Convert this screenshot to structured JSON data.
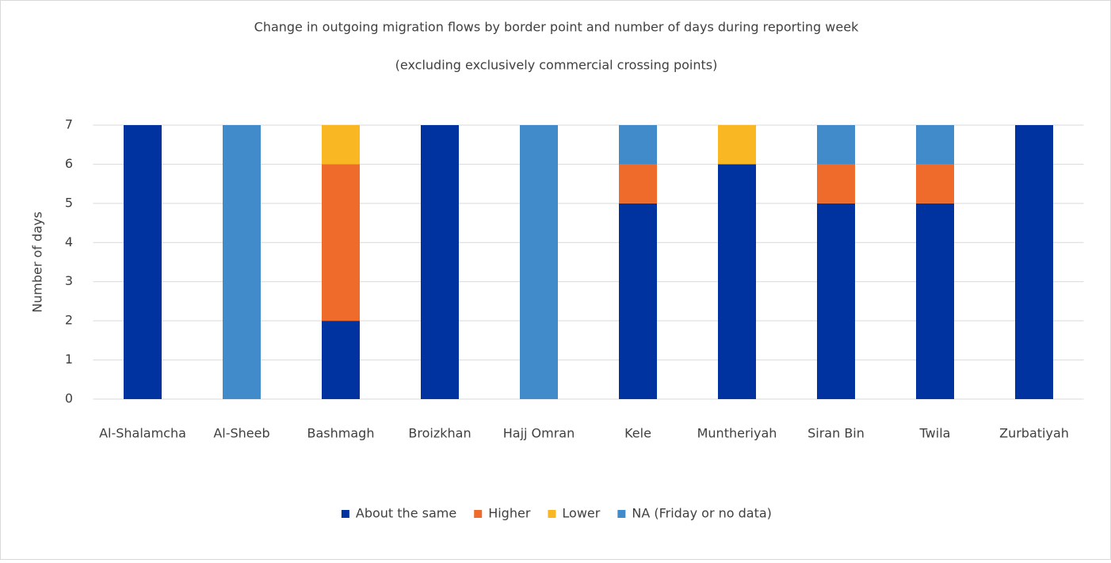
{
  "chart_data": {
    "type": "stacked_bar",
    "title": "Change in outgoing migration flows by border point and number of days during reporting week",
    "subtitle": "(excluding exclusively commercial crossing points)",
    "ylabel": "Number of days",
    "categories": [
      "Al-Shalamcha",
      "Al-Sheeb",
      "Bashmagh",
      "Broizkhan",
      "Hajj Omran",
      "Kele",
      "Muntheriyah",
      "Siran Bin",
      "Twila",
      "Zurbatiyah"
    ],
    "series": [
      {
        "name": "About the same",
        "color": "#0033a0",
        "values": [
          7,
          0,
          2,
          7,
          0,
          5,
          6,
          5,
          5,
          7
        ]
      },
      {
        "name": "Higher",
        "color": "#ee6b2c",
        "values": [
          0,
          0,
          4,
          0,
          0,
          1,
          0,
          1,
          1,
          0
        ]
      },
      {
        "name": "Lower",
        "color": "#f9b823",
        "values": [
          0,
          0,
          1,
          0,
          0,
          0,
          1,
          0,
          0,
          0
        ]
      },
      {
        "name": "NA (Friday or no data)",
        "color": "#428bca",
        "values": [
          0,
          7,
          0,
          0,
          7,
          1,
          0,
          1,
          1,
          0
        ]
      }
    ],
    "ylim": [
      0,
      7
    ],
    "yticks": [
      0,
      1,
      2,
      3,
      4,
      5,
      6,
      7
    ],
    "grid": true,
    "legend": "bottom"
  }
}
